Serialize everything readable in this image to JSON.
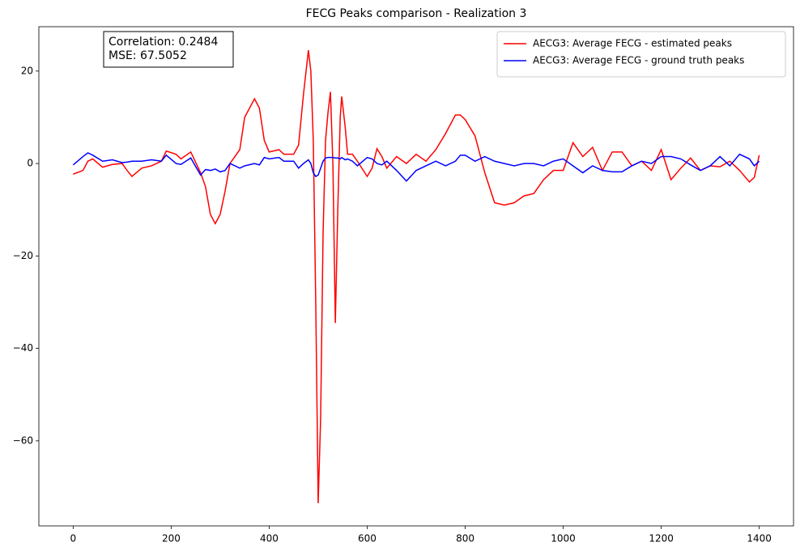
{
  "chart_data": {
    "type": "line",
    "title": "FECG Peaks comparison - Realization 3",
    "annotations": [
      "Correlation: 0.2484",
      "MSE: 67.5052"
    ],
    "legend": "upper right",
    "x": [
      0,
      20,
      30,
      40,
      60,
      80,
      100,
      110,
      120,
      140,
      160,
      180,
      190,
      210,
      220,
      240,
      260,
      270,
      280,
      290,
      300,
      310,
      320,
      340,
      350,
      370,
      380,
      390,
      400,
      420,
      430,
      450,
      460,
      470,
      480,
      485,
      490,
      495,
      500,
      505,
      510,
      515,
      520,
      525,
      530,
      535,
      540,
      545,
      548,
      555,
      560,
      570,
      580,
      600,
      610,
      620,
      630,
      640,
      660,
      680,
      700,
      720,
      740,
      760,
      780,
      790,
      800,
      820,
      840,
      860,
      880,
      900,
      920,
      940,
      960,
      980,
      1000,
      1020,
      1040,
      1060,
      1080,
      1100,
      1120,
      1140,
      1160,
      1180,
      1200,
      1220,
      1240,
      1260,
      1280,
      1300,
      1320,
      1340,
      1360,
      1380,
      1390,
      1400
    ],
    "series": [
      {
        "name": "AECG3: Average FECG - estimated peaks",
        "color": "#ff0000",
        "values": [
          -2.3,
          -1.5,
          0.5,
          1,
          -0.8,
          -0.2,
          0,
          -1.5,
          -2.8,
          -1,
          -0.5,
          0.5,
          2.7,
          2,
          1,
          2.5,
          -2,
          -5,
          -11,
          -13,
          -11,
          -6,
          0,
          3,
          10,
          14,
          12,
          5,
          2.5,
          3,
          2,
          2,
          4,
          15,
          24.5,
          20,
          5,
          -30,
          -73.5,
          -55,
          -15,
          5,
          11,
          15.5,
          0,
          -34.5,
          -10,
          10,
          14.5,
          8,
          2,
          2,
          0.5,
          -2.8,
          -1,
          3.2,
          1.5,
          -1,
          1.5,
          0,
          2,
          0.5,
          3,
          6.5,
          10.5,
          10.5,
          9.5,
          6,
          -2,
          -8.5,
          -9,
          -8.5,
          -7,
          -6.5,
          -3.5,
          -1.5,
          -1.5,
          4.5,
          1.5,
          3.5,
          -1.5,
          2.5,
          2.5,
          -0.5,
          0.5,
          -1.5,
          3,
          -3.5,
          -1,
          1.2,
          -1.5,
          -0.5,
          -0.7,
          0.5,
          -1.5,
          -4,
          -3,
          1.8
        ]
      },
      {
        "name": "AECG3: Average FECG - ground truth peaks",
        "color": "#0000ff",
        "values": [
          -0.3,
          1.5,
          2.3,
          1.8,
          0.5,
          0.8,
          0.2,
          0.3,
          0.5,
          0.5,
          0.8,
          0.5,
          1.8,
          0,
          -0.2,
          1.2,
          -2.5,
          -1.3,
          -1.5,
          -1.2,
          -1.8,
          -1.5,
          0,
          -1,
          -0.5,
          0,
          -0.3,
          1.3,
          1,
          1.3,
          0.5,
          0.5,
          -1,
          0,
          0.8,
          0,
          -2,
          -2.8,
          -2.5,
          -1,
          0.5,
          1.2,
          1.3,
          1.3,
          1.3,
          1.2,
          1.2,
          1,
          1.3,
          0.8,
          1,
          0.5,
          -0.5,
          1.3,
          1,
          0,
          -0.3,
          0.5,
          -1.5,
          -3.8,
          -1.5,
          -0.5,
          0.5,
          -0.5,
          0.5,
          1.8,
          1.8,
          0.5,
          1.5,
          0.5,
          0,
          -0.5,
          0,
          0,
          -0.5,
          0.5,
          1,
          -0.5,
          -2,
          -0.5,
          -1.5,
          -1.8,
          -1.8,
          -0.5,
          0.5,
          0,
          1.5,
          1.5,
          1,
          -0.3,
          -1.5,
          -0.5,
          1.5,
          -0.5,
          2,
          1,
          -0.5,
          0.5
        ]
      }
    ],
    "xlim": [
      -70,
      1470
    ],
    "ylim": [
      -78.4,
      29.6
    ],
    "xticks": [
      0,
      200,
      400,
      600,
      800,
      1000,
      1200,
      1400
    ],
    "yticks": [
      {
        "value": -60,
        "label": "−60"
      },
      {
        "value": -40,
        "label": "−40"
      },
      {
        "value": -20,
        "label": "−20"
      },
      0,
      20
    ]
  }
}
